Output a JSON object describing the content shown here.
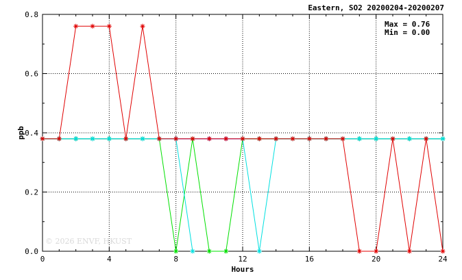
{
  "chart_data": {
    "type": "line",
    "title": "Eastern, SO2 20200204-20200207",
    "xlabel": "Hours",
    "ylabel": "ppb",
    "xlim": [
      0,
      24
    ],
    "ylim": [
      0,
      0.8
    ],
    "x_ticks": [
      0,
      4,
      8,
      12,
      16,
      20,
      24
    ],
    "y_ticks": [
      0.0,
      0.2,
      0.4,
      0.6,
      0.8
    ],
    "x_tick_labels": [
      "0",
      "4",
      "8",
      "12",
      "16",
      "20",
      "24"
    ],
    "y_tick_labels": [
      "0.0",
      "0.2",
      "0.4",
      "0.6",
      "0.8"
    ],
    "grid": true,
    "max_label": "Max = 0.76",
    "min_label": "Min = 0.00",
    "watermark": "© 2026  ENVF, HKUST",
    "x": [
      0,
      1,
      2,
      3,
      4,
      5,
      6,
      7,
      8,
      9,
      10,
      11,
      12,
      13,
      14,
      15,
      16,
      17,
      18,
      19,
      20,
      21,
      22,
      23,
      24
    ],
    "series": [
      {
        "color": "#0000ff",
        "values": [
          0.38,
          0.38,
          0.38,
          0.38,
          0.38,
          0.38,
          0.38,
          0.38,
          0.38,
          0.38,
          0.38,
          0.38,
          0.38,
          0.38,
          0.38,
          0.38,
          0.38,
          0.38,
          0.38,
          0.38,
          0.38,
          0.38,
          0.38,
          0.38,
          0.38
        ]
      },
      {
        "color": "#00e000",
        "values": [
          0.38,
          0.38,
          0.38,
          0.38,
          0.38,
          0.38,
          0.38,
          0.38,
          0.0,
          0.38,
          0.0,
          0.0,
          0.38,
          0.38,
          0.38,
          0.38,
          0.38,
          0.38,
          0.38,
          0.38,
          0.38,
          0.38,
          0.38,
          0.38,
          0.38
        ]
      },
      {
        "color": "#00e0e0",
        "values": [
          0.38,
          0.38,
          0.38,
          0.38,
          0.38,
          0.38,
          0.38,
          0.38,
          0.38,
          0.0,
          null,
          null,
          0.38,
          0.0,
          0.38,
          0.38,
          0.38,
          0.38,
          0.38,
          0.38,
          0.38,
          0.38,
          0.38,
          0.38,
          0.38
        ]
      },
      {
        "color": "#e00000",
        "values": [
          0.38,
          0.38,
          0.76,
          0.76,
          0.76,
          0.38,
          0.76,
          0.38,
          0.38,
          0.38,
          0.38,
          0.38,
          0.38,
          0.38,
          0.38,
          0.38,
          0.38,
          0.38,
          0.38,
          0.0,
          0.0,
          0.38,
          0.0,
          0.38,
          0.0
        ]
      }
    ]
  }
}
